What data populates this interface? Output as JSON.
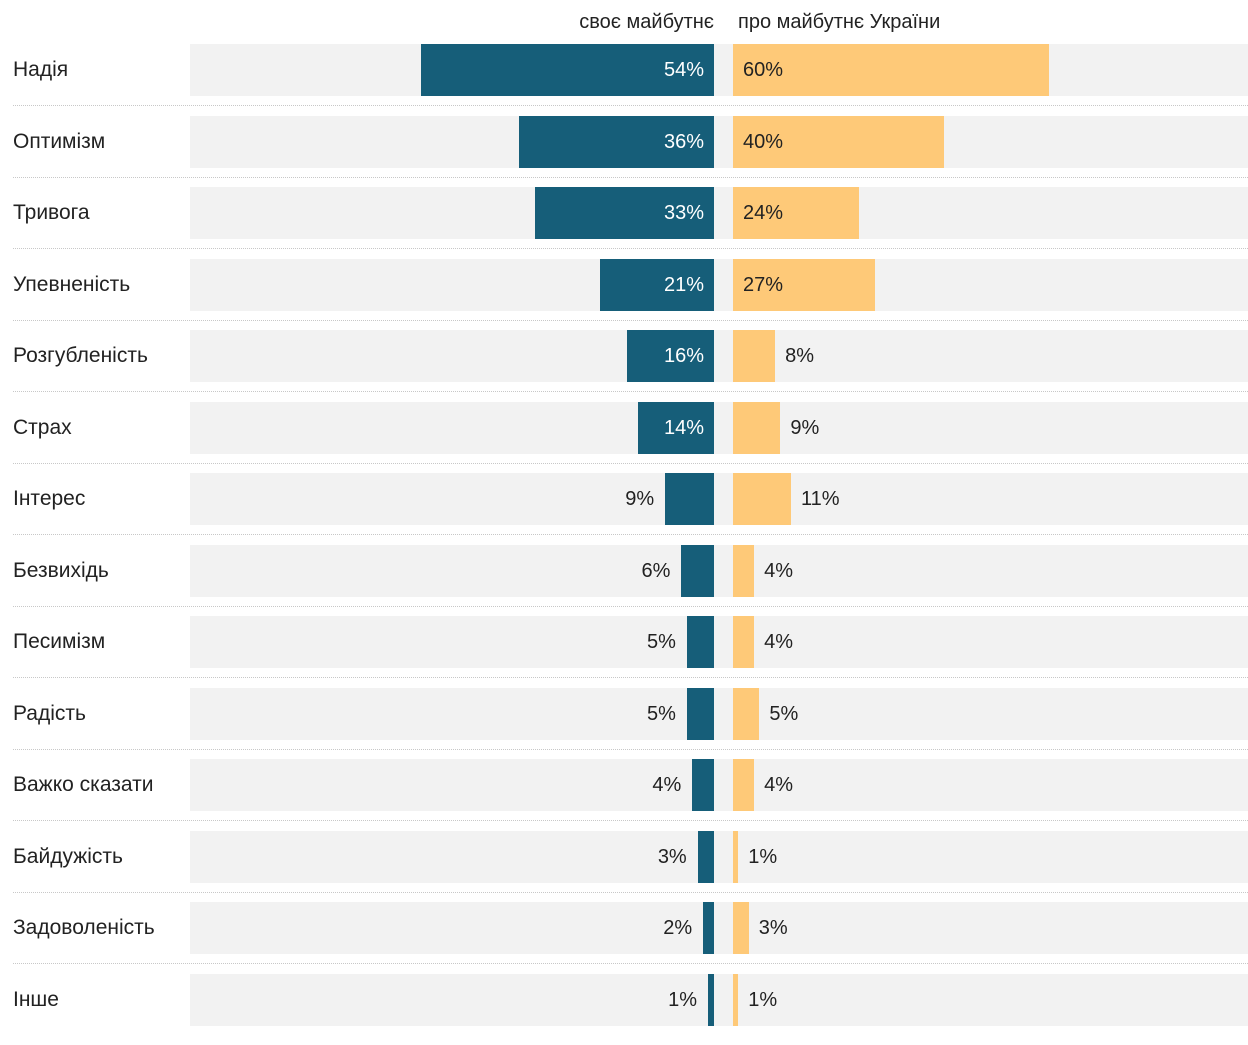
{
  "chart_data": {
    "type": "bar",
    "title": "",
    "series": [
      {
        "name": "своє майбутнє",
        "color": "#165e79",
        "values": [
          54,
          36,
          33,
          21,
          16,
          14,
          9,
          6,
          5,
          5,
          4,
          3,
          2,
          1
        ]
      },
      {
        "name": "про майбутнє України",
        "color": "#fec978",
        "values": [
          60,
          40,
          24,
          27,
          8,
          9,
          11,
          4,
          4,
          5,
          4,
          1,
          3,
          1
        ]
      }
    ],
    "categories": [
      "Надія",
      "Оптимізм",
      "Тривога",
      "Упевненість",
      "Розгубленість",
      "Страх",
      "Інтерес",
      "Безвихідь",
      "Песимізм",
      "Радість",
      "Важко сказати",
      "Байдужість",
      "Задоволеність",
      "Інше"
    ],
    "value_labels_left": [
      "54%",
      "36%",
      "33%",
      "21%",
      "16%",
      "14%",
      "9%",
      "6%",
      "5%",
      "5%",
      "4%",
      "3%",
      "2%",
      "1%"
    ],
    "value_labels_right": [
      "60%",
      "40%",
      "24%",
      "27%",
      "8%",
      "9%",
      "11%",
      "4%",
      "4%",
      "5%",
      "4%",
      "1%",
      "3%",
      "1%"
    ],
    "unit": "%",
    "xlim": [
      0,
      100
    ],
    "grid": false,
    "legend": "top"
  }
}
